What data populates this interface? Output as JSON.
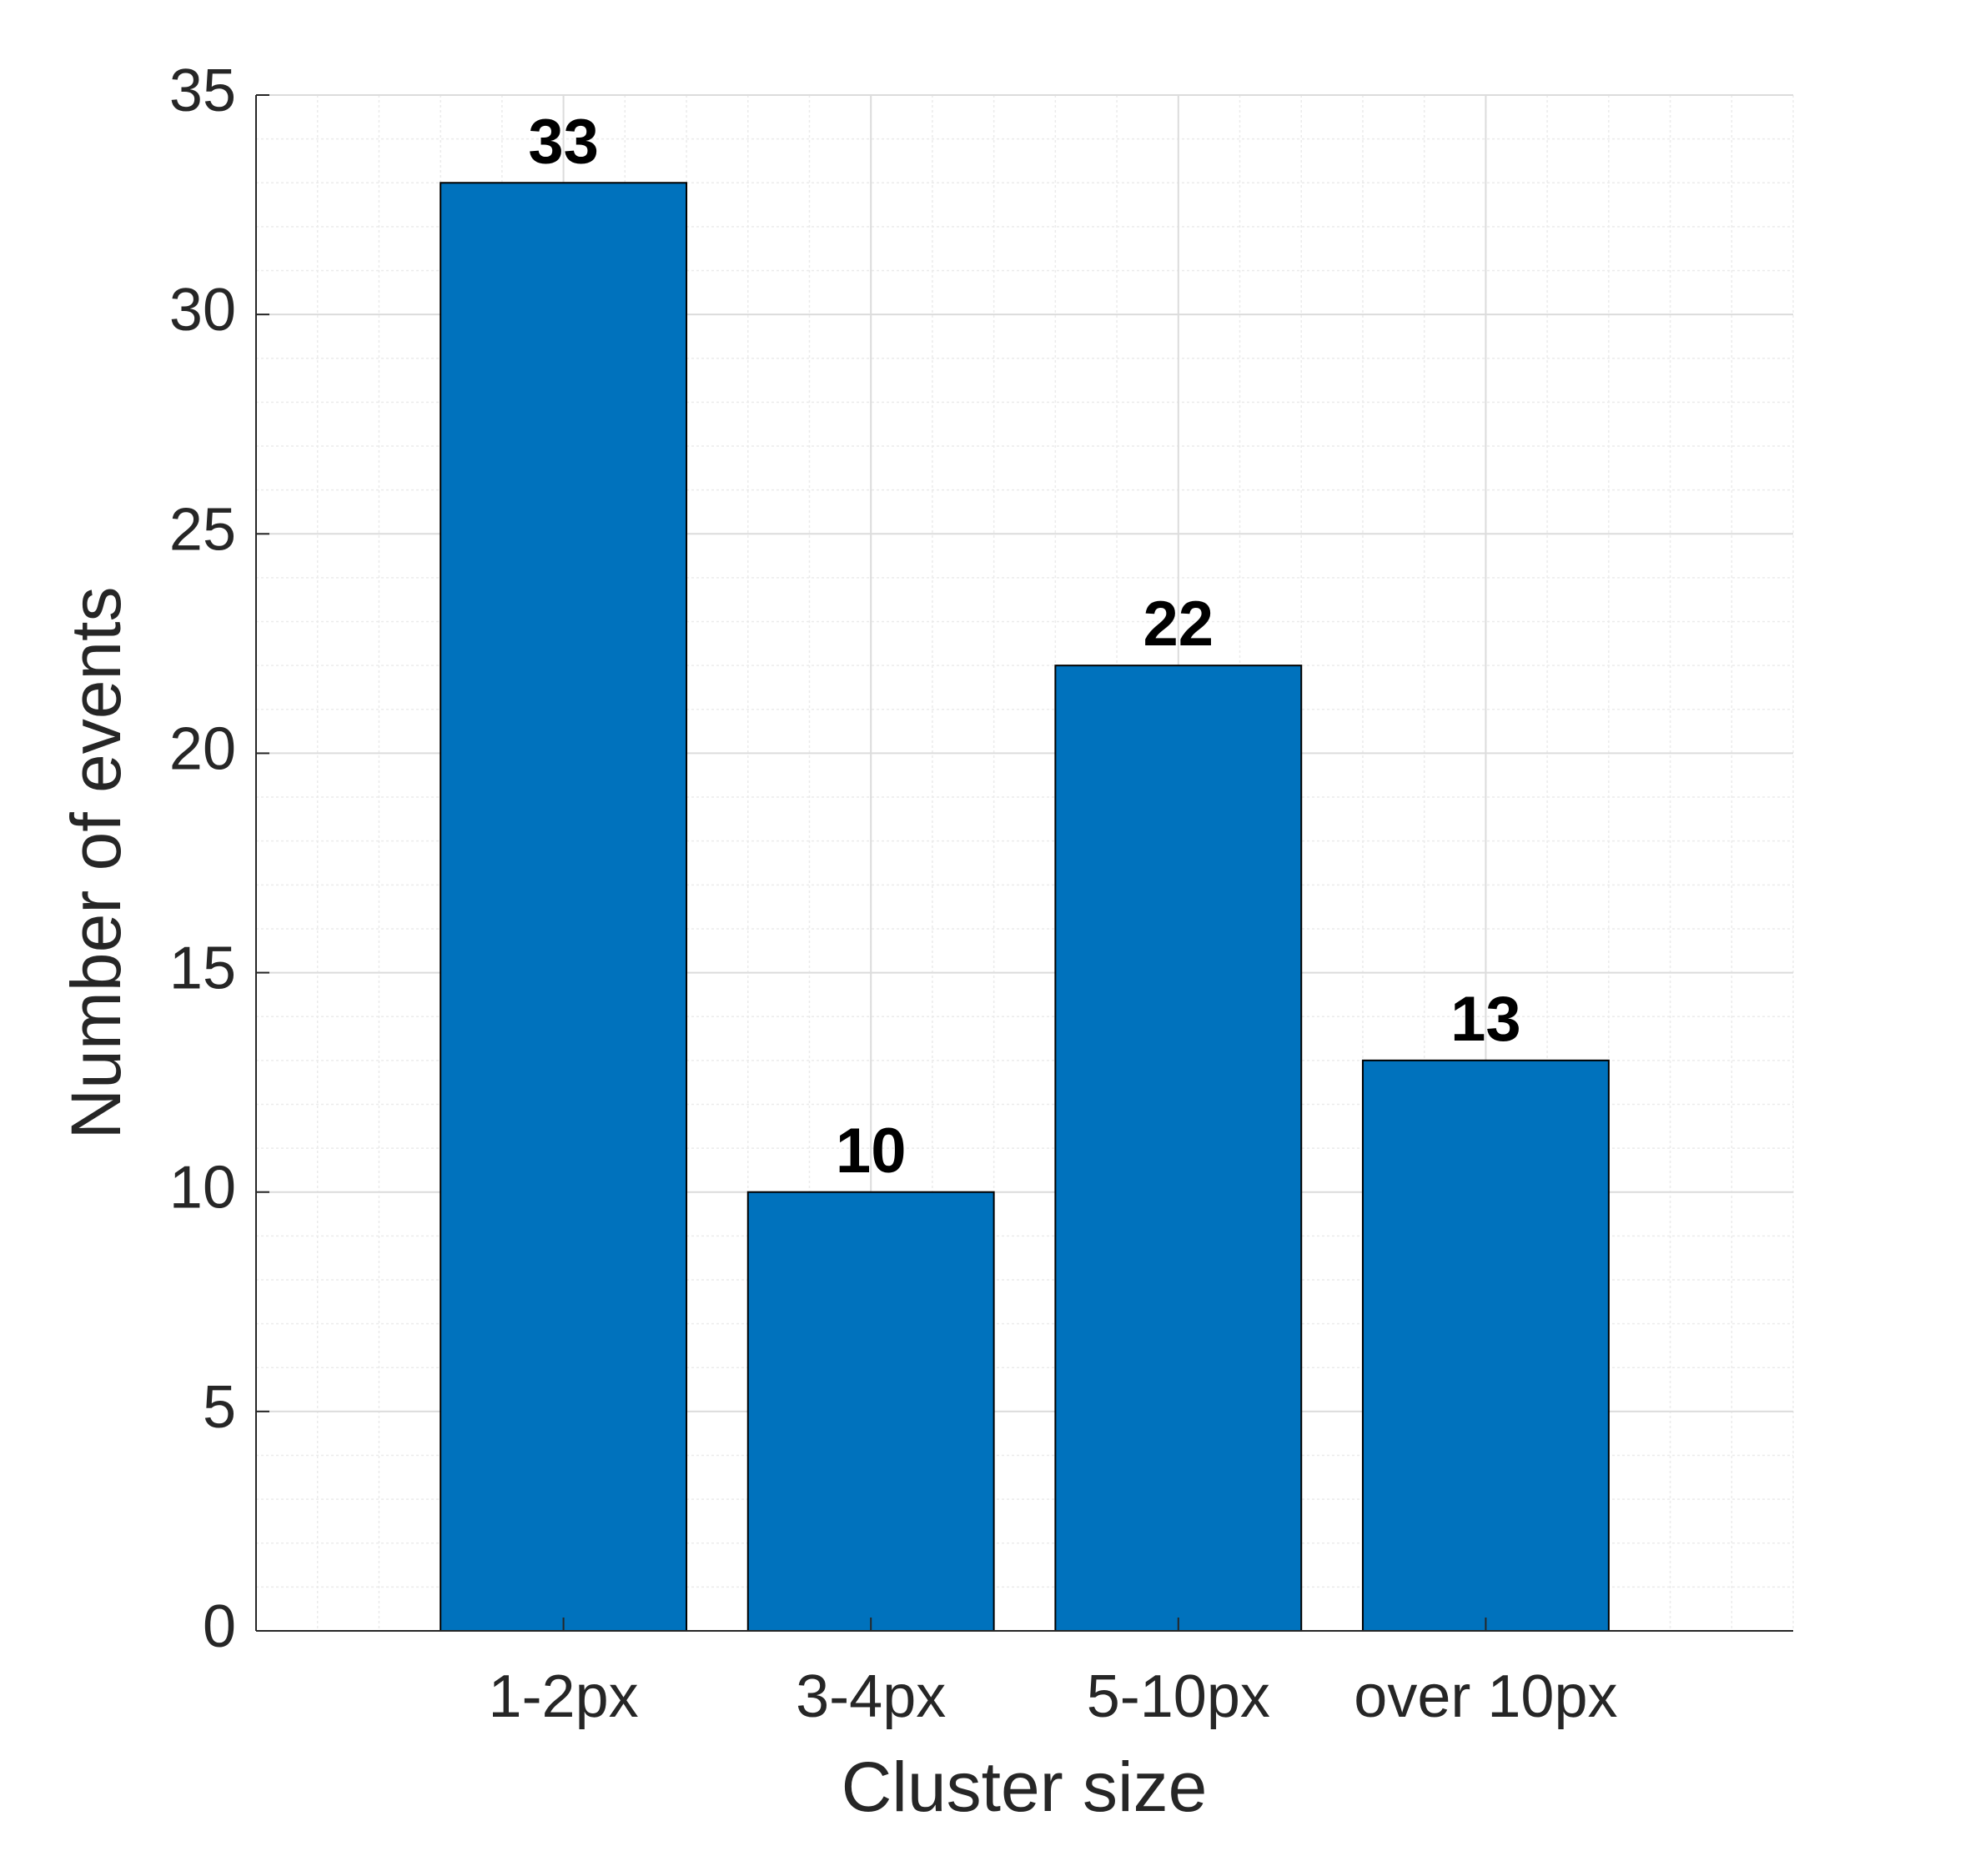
{
  "chart_data": {
    "type": "bar",
    "xlabel": "Cluster size",
    "ylabel": "Number of events",
    "categories": [
      "1-2px",
      "3-4px",
      "5-10px",
      "over 10px"
    ],
    "values": [
      33,
      10,
      22,
      13
    ],
    "color": "#0072bd",
    "ylim": [
      0,
      35
    ],
    "yticks": [
      0,
      5,
      10,
      15,
      20,
      25,
      30,
      35
    ],
    "grid": true,
    "minor_grid": true,
    "show_value_labels": true
  }
}
